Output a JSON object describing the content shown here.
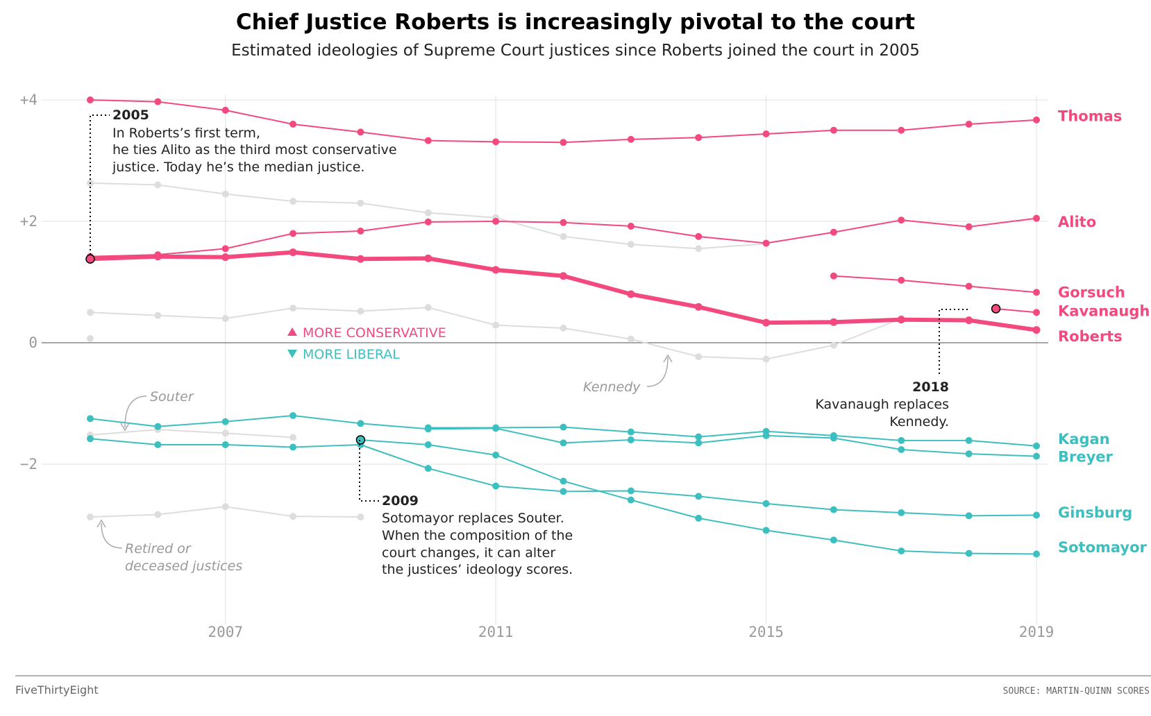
{
  "chart_data": {
    "type": "line",
    "title": "Chief Justice Roberts is increasingly pivotal to the court",
    "subtitle": "Estimated ideologies of Supreme Court justices since Roberts joined the court in 2005",
    "xlabel": "",
    "ylabel": "",
    "xlim": [
      2005,
      2019
    ],
    "ylim": [
      -4.3,
      4.1
    ],
    "x_ticks": [
      2007,
      2011,
      2015,
      2019
    ],
    "x_tick_labels": [
      "2007",
      "2011",
      "2015",
      "2019"
    ],
    "y_ticks": [
      4,
      2,
      0,
      -2
    ],
    "y_tick_labels": [
      "+4",
      "+2",
      "0",
      "−2"
    ],
    "grid": true,
    "series": [
      {
        "name": "Thomas",
        "color": "#f2497e",
        "x": [
          2005,
          2006,
          2007,
          2008,
          2009,
          2010,
          2011,
          2012,
          2013,
          2014,
          2015,
          2016,
          2017,
          2018,
          2019
        ],
        "values": [
          4.0,
          3.97,
          3.83,
          3.6,
          3.47,
          3.33,
          3.31,
          3.3,
          3.35,
          3.38,
          3.44,
          3.5,
          3.5,
          3.6,
          3.67
        ]
      },
      {
        "name": "Alito",
        "color": "#f2497e",
        "x": [
          2005,
          2006,
          2007,
          2008,
          2009,
          2010,
          2011,
          2012,
          2013,
          2014,
          2015,
          2016,
          2017,
          2018,
          2019
        ],
        "values": [
          1.42,
          1.45,
          1.55,
          1.8,
          1.84,
          1.99,
          2.0,
          1.98,
          1.92,
          1.75,
          1.64,
          1.82,
          2.02,
          1.91,
          2.05
        ]
      },
      {
        "name": "Gorsuch",
        "color": "#f2497e",
        "x": [
          2016,
          2017,
          2018,
          2019
        ],
        "values": [
          1.1,
          1.03,
          0.93,
          0.83
        ]
      },
      {
        "name": "Kavanaugh",
        "color": "#f2497e",
        "x": [
          2018.4,
          2019
        ],
        "values": [
          0.56,
          0.5
        ]
      },
      {
        "name": "Roberts",
        "color": "#f2497e",
        "x": [
          2005,
          2006,
          2007,
          2008,
          2009,
          2010,
          2011,
          2012,
          2013,
          2014,
          2015,
          2016,
          2017,
          2018,
          2019
        ],
        "values": [
          1.38,
          1.42,
          1.41,
          1.49,
          1.38,
          1.39,
          1.2,
          1.1,
          0.8,
          0.59,
          0.33,
          0.34,
          0.38,
          0.37,
          0.21
        ]
      },
      {
        "name": "Kagan",
        "color": "#3ebfbf",
        "x": [
          2010,
          2011,
          2012,
          2013,
          2014,
          2015,
          2016,
          2017,
          2018,
          2019
        ],
        "values": [
          -1.4,
          -1.4,
          -1.39,
          -1.47,
          -1.55,
          -1.46,
          -1.53,
          -1.61,
          -1.61,
          -1.7
        ]
      },
      {
        "name": "Breyer",
        "color": "#3ebfbf",
        "x": [
          2005,
          2006,
          2007,
          2008,
          2009,
          2010,
          2011,
          2012,
          2013,
          2014,
          2015,
          2016,
          2017,
          2018,
          2019
        ],
        "values": [
          -1.25,
          -1.38,
          -1.3,
          -1.2,
          -1.33,
          -1.42,
          -1.41,
          -1.65,
          -1.6,
          -1.65,
          -1.53,
          -1.57,
          -1.76,
          -1.83,
          -1.87
        ]
      },
      {
        "name": "Ginsburg",
        "color": "#3ebfbf",
        "x": [
          2005,
          2006,
          2007,
          2008,
          2009,
          2010,
          2011,
          2012,
          2013,
          2014,
          2015,
          2016,
          2017,
          2018,
          2019
        ],
        "values": [
          -1.58,
          -1.68,
          -1.68,
          -1.72,
          -1.68,
          -2.07,
          -2.36,
          -2.45,
          -2.44,
          -2.53,
          -2.65,
          -2.75,
          -2.8,
          -2.85,
          -2.84
        ]
      },
      {
        "name": "Sotomayor",
        "color": "#3ebfbf",
        "x": [
          2009,
          2010,
          2011,
          2012,
          2013,
          2014,
          2015,
          2016,
          2017,
          2018,
          2019
        ],
        "values": [
          -1.6,
          -1.68,
          -1.85,
          -2.28,
          -2.59,
          -2.89,
          -3.09,
          -3.25,
          -3.43,
          -3.47,
          -3.48
        ]
      },
      {
        "name": "Kennedy",
        "color": "#dddddd",
        "x": [
          2005,
          2006,
          2007,
          2008,
          2009,
          2010,
          2011,
          2012,
          2013,
          2014,
          2015,
          2016,
          2017
        ],
        "values": [
          0.5,
          0.45,
          0.4,
          0.57,
          0.52,
          0.58,
          0.29,
          0.24,
          0.06,
          -0.23,
          -0.27,
          -0.04,
          0.4
        ]
      },
      {
        "name": "",
        "color": "#dddddd",
        "x": [
          2005,
          2006,
          2007,
          2008,
          2009,
          2010,
          2011,
          2012,
          2013,
          2014,
          2015
        ],
        "values": [
          2.63,
          2.6,
          2.45,
          2.33,
          2.3,
          2.14,
          2.06,
          1.75,
          1.62,
          1.55,
          1.63
        ]
      },
      {
        "name": "Souter",
        "color": "#dddddd",
        "x": [
          2005,
          2006,
          2007,
          2008
        ],
        "values": [
          -1.52,
          -1.43,
          -1.49,
          -1.56
        ]
      },
      {
        "name": "",
        "color": "#dddddd",
        "x": [
          2005,
          2006,
          2007,
          2008,
          2009
        ],
        "values": [
          -2.87,
          -2.83,
          -2.7,
          -2.86,
          -2.87
        ]
      },
      {
        "name": "",
        "color": "#dddddd",
        "x": [
          2005
        ],
        "values": [
          0.07
        ]
      }
    ],
    "series_labels": [
      {
        "name": "Thomas",
        "y": 3.72,
        "color": "#f2497e",
        "size": "normal"
      },
      {
        "name": "Alito",
        "y": 1.98,
        "color": "#f2497e",
        "size": "normal"
      },
      {
        "name": "Gorsuch",
        "y": 0.82,
        "color": "#f2497e",
        "size": "normal"
      },
      {
        "name": "Kavanaugh",
        "y": 0.51,
        "color": "#f2497e",
        "size": "normal"
      },
      {
        "name": "Roberts",
        "y": 0.09,
        "color": "#f2497e",
        "size": "large"
      },
      {
        "name": "Kagan",
        "y": -1.6,
        "color": "#3ebfbf",
        "size": "normal"
      },
      {
        "name": "Breyer",
        "y": -1.89,
        "color": "#3ebfbf",
        "size": "normal"
      },
      {
        "name": "Ginsburg",
        "y": -2.81,
        "color": "#3ebfbf",
        "size": "normal"
      },
      {
        "name": "Sotomayor",
        "y": -3.38,
        "color": "#3ebfbf",
        "size": "normal"
      }
    ],
    "direction_labels": {
      "up": "MORE CONSERVATIVE",
      "down": "MORE LIBERAL",
      "up_color": "#f2497e",
      "down_color": "#3ebfbf"
    },
    "annotations": [
      {
        "heading": "2005",
        "lines": [
          "In Roberts’s first term,",
          "he ties Alito as the third most conservative",
          "justice. Today he’s the median justice."
        ]
      },
      {
        "heading": "2009",
        "lines": [
          "Sotomayor replaces Souter.",
          "When the composition of the",
          "court changes, it can alter",
          "the justices’ ideology scores."
        ]
      },
      {
        "heading": "2018",
        "lines": [
          "Kavanaugh replaces",
          "Kennedy."
        ]
      }
    ],
    "gray_notes": {
      "kennedy": "Kennedy",
      "souter": "Souter",
      "retired": [
        "Retired or",
        "deceased justices"
      ]
    }
  },
  "footer": {
    "brand": "FiveThirtyEight",
    "source": "SOURCE: MARTIN-QUINN SCORES"
  }
}
